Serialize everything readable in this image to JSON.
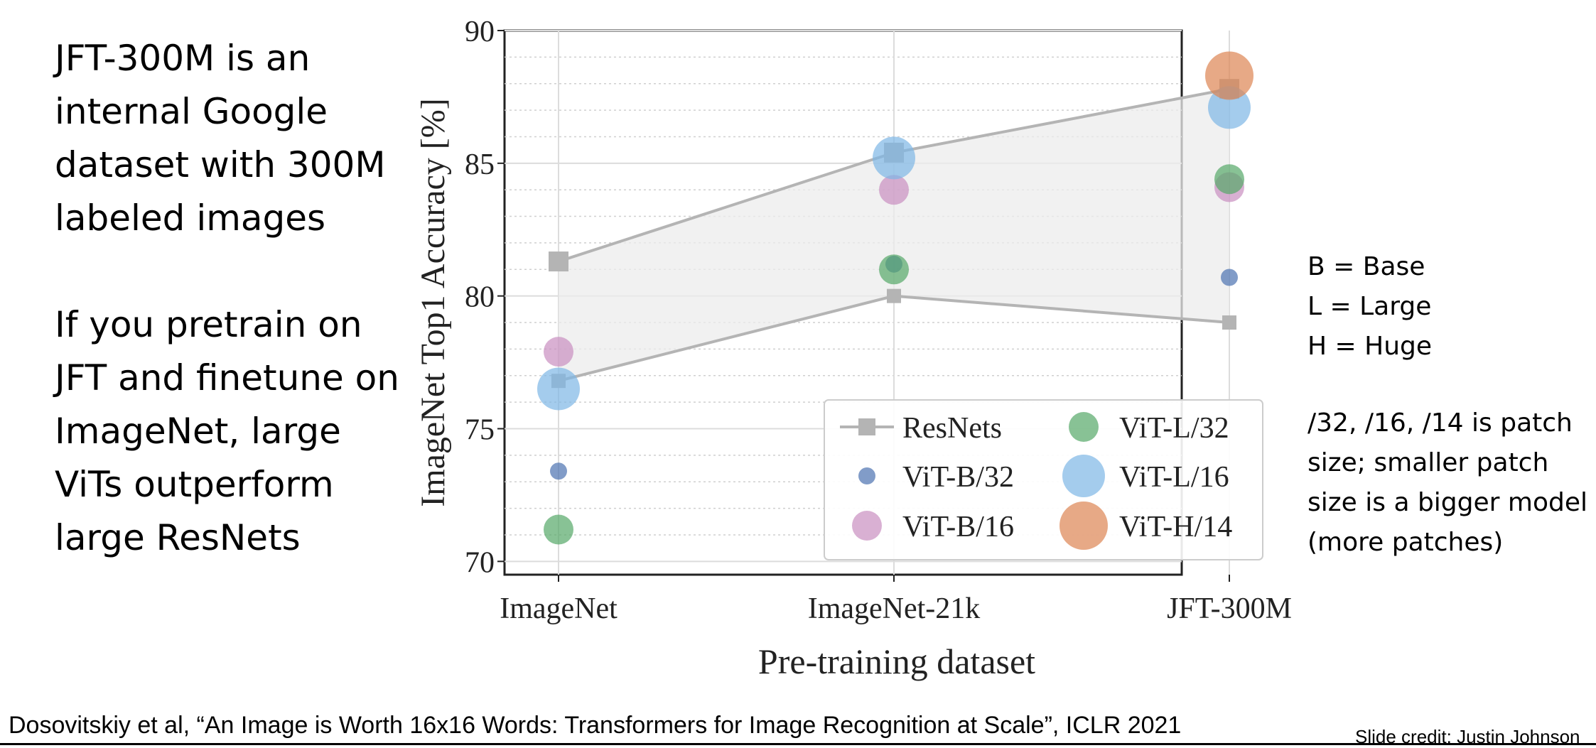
{
  "left_panel": {
    "paragraph1": [
      "JFT-300M is an",
      "internal Google",
      "dataset with 300M",
      "labeled images"
    ],
    "paragraph2": [
      "If you pretrain on",
      "JFT and finetune on",
      "ImageNet, large",
      "ViTs outperform",
      "large ResNets"
    ]
  },
  "right_panel": {
    "abbreviations": [
      "B = Base",
      "L = Large",
      "H = Huge"
    ],
    "patch_note": [
      "/32, /16, /14 is patch",
      "size; smaller patch",
      "size is a bigger model",
      "(more patches)"
    ]
  },
  "footer": {
    "citation": "Dosovitskiy et al, “An Image is Worth 16x16 Words: Transformers for Image Recognition at Scale”, ICLR 2021",
    "credit": "Slide credit: Justin Johnson"
  },
  "chart_data": {
    "type": "scatter",
    "title": "",
    "xlabel": "Pre-training dataset",
    "ylabel": "ImageNet Top1 Accuracy [%]",
    "categories": [
      "ImageNet",
      "ImageNet-21k",
      "JFT-300M"
    ],
    "ylim": [
      69.5,
      90
    ],
    "yticks": [
      70,
      75,
      80,
      85,
      90
    ],
    "grid": true,
    "legend_position": "lower-right",
    "resnet_band": {
      "name": "ResNets",
      "upper": [
        81.3,
        85.4,
        87.8
      ],
      "lower": [
        76.8,
        80.0,
        79.0
      ],
      "color": "#b4b4b4"
    },
    "series": [
      {
        "name": "ViT-B/32",
        "values": [
          73.4,
          81.2,
          80.7
        ],
        "color": "#4c72b0",
        "size": "small"
      },
      {
        "name": "ViT-B/16",
        "values": [
          77.9,
          84.0,
          84.1
        ],
        "color": "#c98fc1",
        "size": "medium"
      },
      {
        "name": "ViT-L/32",
        "values": [
          71.2,
          81.0,
          84.4
        ],
        "color": "#55a868",
        "size": "medium"
      },
      {
        "name": "ViT-L/16",
        "values": [
          76.5,
          85.2,
          87.1
        ],
        "color": "#7eb6e6",
        "size": "large"
      },
      {
        "name": "ViT-H/14",
        "values": [
          null,
          null,
          88.3
        ],
        "color": "#dd8452",
        "size": "xlarge"
      }
    ],
    "legend": [
      "ResNets",
      "ViT-L/32",
      "ViT-B/32",
      "ViT-L/16",
      "ViT-B/16",
      "ViT-H/14"
    ]
  }
}
